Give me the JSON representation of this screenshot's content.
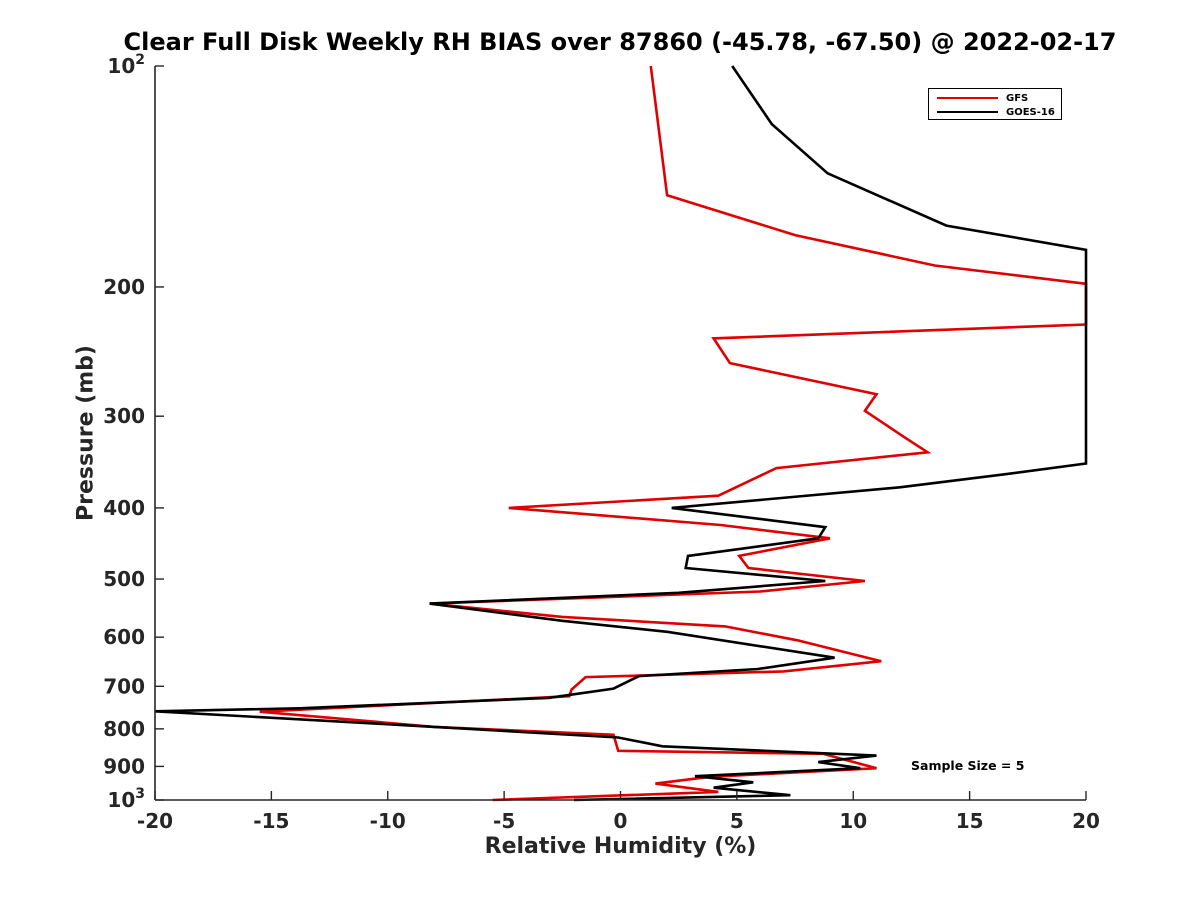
{
  "chart_data": {
    "type": "line",
    "title": "Clear Full Disk Weekly RH BIAS over 87860 (-45.78, -67.50) @ 2022-02-17",
    "xlabel": "Relative Humidity (%)",
    "ylabel": "Pressure (mb)",
    "xlim": [
      -20,
      20
    ],
    "ylim": [
      100,
      1000
    ],
    "y_scale": "log",
    "y_reversed": true,
    "grid": false,
    "legend_position": "top-right",
    "x_ticks": [
      "-20",
      "-15",
      "-10",
      "-5",
      "0",
      "5",
      "10",
      "15",
      "20"
    ],
    "y_tick_values": [
      100,
      200,
      300,
      400,
      500,
      600,
      700,
      800,
      900,
      1000
    ],
    "y_tick_labels": [
      {
        "base": "10",
        "sup": "2"
      },
      {
        "base": "200",
        "sup": ""
      },
      {
        "base": "300",
        "sup": ""
      },
      {
        "base": "400",
        "sup": ""
      },
      {
        "base": "500",
        "sup": ""
      },
      {
        "base": "600",
        "sup": ""
      },
      {
        "base": "700",
        "sup": ""
      },
      {
        "base": "800",
        "sup": ""
      },
      {
        "base": "900",
        "sup": ""
      },
      {
        "base": "10",
        "sup": "3"
      }
    ],
    "annotation": "Sample Size = 5",
    "series": [
      {
        "name": "GFS",
        "color": "#e00000",
        "points": [
          [
            1.3,
            100
          ],
          [
            2.0,
            150
          ],
          [
            7.5,
            170
          ],
          [
            13.5,
            187
          ],
          [
            20.0,
            198
          ],
          [
            20.0,
            225
          ],
          [
            4.0,
            235
          ],
          [
            4.7,
            254
          ],
          [
            11.0,
            280
          ],
          [
            10.5,
            295
          ],
          [
            12.3,
            322
          ],
          [
            13.2,
            336
          ],
          [
            6.7,
            353
          ],
          [
            4.2,
            385
          ],
          [
            -4.8,
            400
          ],
          [
            4.3,
            422
          ],
          [
            9.0,
            440
          ],
          [
            5.1,
            465
          ],
          [
            5.5,
            483
          ],
          [
            10.5,
            503
          ],
          [
            6.0,
            520
          ],
          [
            -8.2,
            540
          ],
          [
            -2.5,
            563
          ],
          [
            4.5,
            580
          ],
          [
            7.6,
            606
          ],
          [
            11.2,
            647
          ],
          [
            7.0,
            668
          ],
          [
            -1.5,
            680
          ],
          [
            -2.1,
            707
          ],
          [
            -2.2,
            722
          ],
          [
            -15.5,
            758
          ],
          [
            -8.0,
            795
          ],
          [
            -0.3,
            815
          ],
          [
            -0.1,
            857
          ],
          [
            8.7,
            865
          ],
          [
            11.0,
            905
          ],
          [
            3.8,
            930
          ],
          [
            1.5,
            950
          ],
          [
            4.2,
            975
          ],
          [
            -5.5,
            1000
          ]
        ]
      },
      {
        "name": "GOES-16",
        "color": "#000000",
        "points": [
          [
            4.8,
            100
          ],
          [
            6.5,
            120
          ],
          [
            8.9,
            140
          ],
          [
            14.0,
            165
          ],
          [
            20.0,
            178
          ],
          [
            20.0,
            348
          ],
          [
            16.5,
            360
          ],
          [
            12.0,
            375
          ],
          [
            2.2,
            400
          ],
          [
            8.8,
            425
          ],
          [
            8.5,
            440
          ],
          [
            2.9,
            465
          ],
          [
            2.8,
            483
          ],
          [
            8.8,
            503
          ],
          [
            2.5,
            522
          ],
          [
            -8.2,
            540
          ],
          [
            -2.5,
            570
          ],
          [
            2.0,
            590
          ],
          [
            9.2,
            640
          ],
          [
            5.9,
            663
          ],
          [
            0.8,
            678
          ],
          [
            -0.3,
            705
          ],
          [
            -3.1,
            726
          ],
          [
            -13.8,
            750
          ],
          [
            -20.0,
            757
          ],
          [
            -9.5,
            790
          ],
          [
            -0.1,
            822
          ],
          [
            1.8,
            845
          ],
          [
            11.0,
            870
          ],
          [
            8.5,
            888
          ],
          [
            10.3,
            905
          ],
          [
            3.2,
            928
          ],
          [
            5.7,
            946
          ],
          [
            4.0,
            962
          ],
          [
            7.3,
            985
          ],
          [
            -2.0,
            1000
          ]
        ]
      }
    ]
  }
}
